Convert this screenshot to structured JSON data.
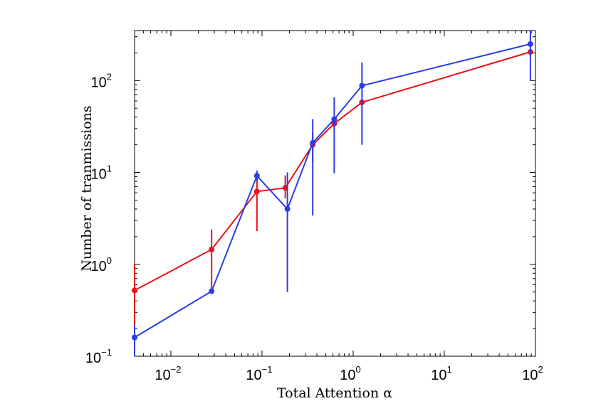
{
  "chart_data": {
    "type": "line",
    "xscale": "log",
    "yscale": "log",
    "xlabel": "Total Attention α",
    "ylabel": "Number of tranmissions",
    "xlim": [
      0.004,
      100
    ],
    "ylim": [
      0.1,
      350
    ],
    "xticks": [
      {
        "base": "10",
        "exp": "−2"
      },
      {
        "base": "10",
        "exp": "−1"
      },
      {
        "base": "10",
        "exp": "0"
      },
      {
        "base": "10",
        "exp": "1"
      },
      {
        "base": "10",
        "exp": "2"
      }
    ],
    "yticks": [
      {
        "base": "10",
        "exp": "−1"
      },
      {
        "base": "10",
        "exp": "0"
      },
      {
        "base": "10",
        "exp": "1"
      },
      {
        "base": "10",
        "exp": "2"
      }
    ],
    "grid": false,
    "series": [
      {
        "color": "#e8131a",
        "x": [
          0.004,
          0.028,
          0.088,
          0.18,
          0.36,
          0.62,
          1.25,
          88
        ],
        "y": [
          0.52,
          1.45,
          6.2,
          6.8,
          20,
          34,
          58,
          205
        ],
        "err_low": [
          0.1,
          0.5,
          2.3,
          5.2,
          13,
          30,
          55,
          190
        ],
        "err_high": [
          1.0,
          2.4,
          8.5,
          9.3,
          27,
          40,
          62,
          220
        ]
      },
      {
        "color": "#2a3de6",
        "x": [
          0.004,
          0.028,
          0.088,
          0.19,
          0.36,
          0.62,
          1.25,
          88
        ],
        "y": [
          0.16,
          0.51,
          9.2,
          4.0,
          21,
          38,
          88,
          250
        ],
        "err_low": [
          0.1,
          0.48,
          8.0,
          0.5,
          3.4,
          9.8,
          20,
          100
        ],
        "err_high": [
          0.22,
          0.55,
          10.5,
          10.0,
          38,
          66,
          158,
          350
        ]
      }
    ]
  }
}
